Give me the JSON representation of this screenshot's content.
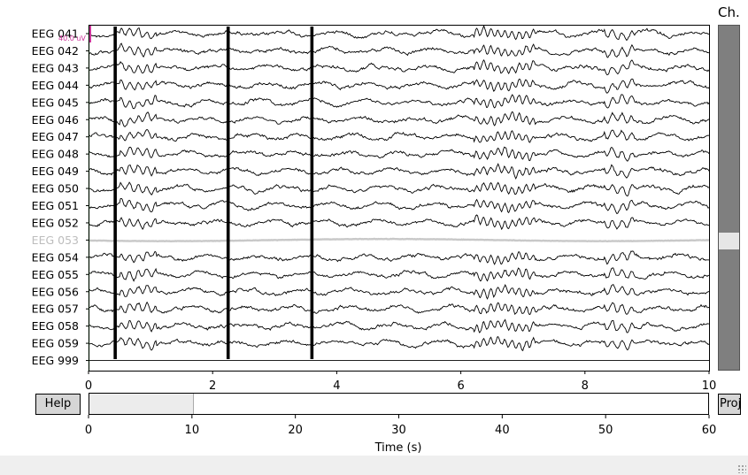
{
  "window": {
    "type": "EEG raw data browser"
  },
  "channels": [
    {
      "label": "EEG 041",
      "bad": false
    },
    {
      "label": "EEG 042",
      "bad": false
    },
    {
      "label": "EEG 043",
      "bad": false
    },
    {
      "label": "EEG 044",
      "bad": false
    },
    {
      "label": "EEG 045",
      "bad": false
    },
    {
      "label": "EEG 046",
      "bad": false
    },
    {
      "label": "EEG 047",
      "bad": false
    },
    {
      "label": "EEG 048",
      "bad": false
    },
    {
      "label": "EEG 049",
      "bad": false
    },
    {
      "label": "EEG 050",
      "bad": false
    },
    {
      "label": "EEG 051",
      "bad": false
    },
    {
      "label": "EEG 052",
      "bad": false
    },
    {
      "label": "EEG 053",
      "bad": true
    },
    {
      "label": "EEG 054",
      "bad": false
    },
    {
      "label": "EEG 055",
      "bad": false
    },
    {
      "label": "EEG 056",
      "bad": false
    },
    {
      "label": "EEG 057",
      "bad": false
    },
    {
      "label": "EEG 058",
      "bad": false
    },
    {
      "label": "EEG 059",
      "bad": false
    },
    {
      "label": "EEG 999",
      "bad": false
    }
  ],
  "main_xaxis": {
    "range": [
      0,
      10
    ],
    "ticks": [
      "0",
      "2",
      "4",
      "6",
      "8",
      "10"
    ]
  },
  "overview_xaxis": {
    "range": [
      0,
      60
    ],
    "ticks": [
      "0",
      "10",
      "20",
      "30",
      "40",
      "50",
      "60"
    ],
    "label": "Time (s)",
    "visible_window": [
      0,
      10
    ]
  },
  "scale_bar_label": "40.0 uV",
  "artifact_times_s": [
    0.43,
    2.25,
    3.6
  ],
  "buttons": {
    "help": "Help",
    "proj": "Proj"
  },
  "channel_panel": {
    "title": "Ch."
  },
  "colors": {
    "trace": "#000000",
    "bad_trace": "#c8c8c8",
    "bad_label": "#bdbdbd",
    "axis_start_line": "#00aa00",
    "scale_bar": "#cc3399",
    "scroll_thumb": "#7f7f7f"
  }
}
